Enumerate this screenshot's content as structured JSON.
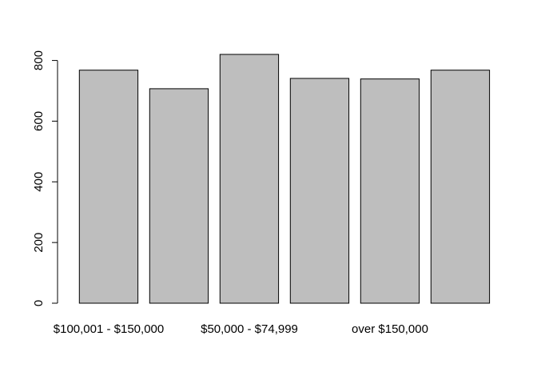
{
  "chart_data": {
    "type": "bar",
    "categories": [
      "$100,001 - $150,000",
      "",
      "$50,000 - $74,999",
      "",
      "over $150,000",
      ""
    ],
    "values": [
      768,
      707,
      820,
      741,
      739,
      768
    ],
    "yticks": [
      0,
      200,
      400,
      600,
      800
    ],
    "ylim": [
      0,
      820
    ],
    "title": "",
    "xlabel": "",
    "ylabel": "",
    "bar_color": "#bebebe",
    "border_color": "#000000",
    "grid": false
  }
}
